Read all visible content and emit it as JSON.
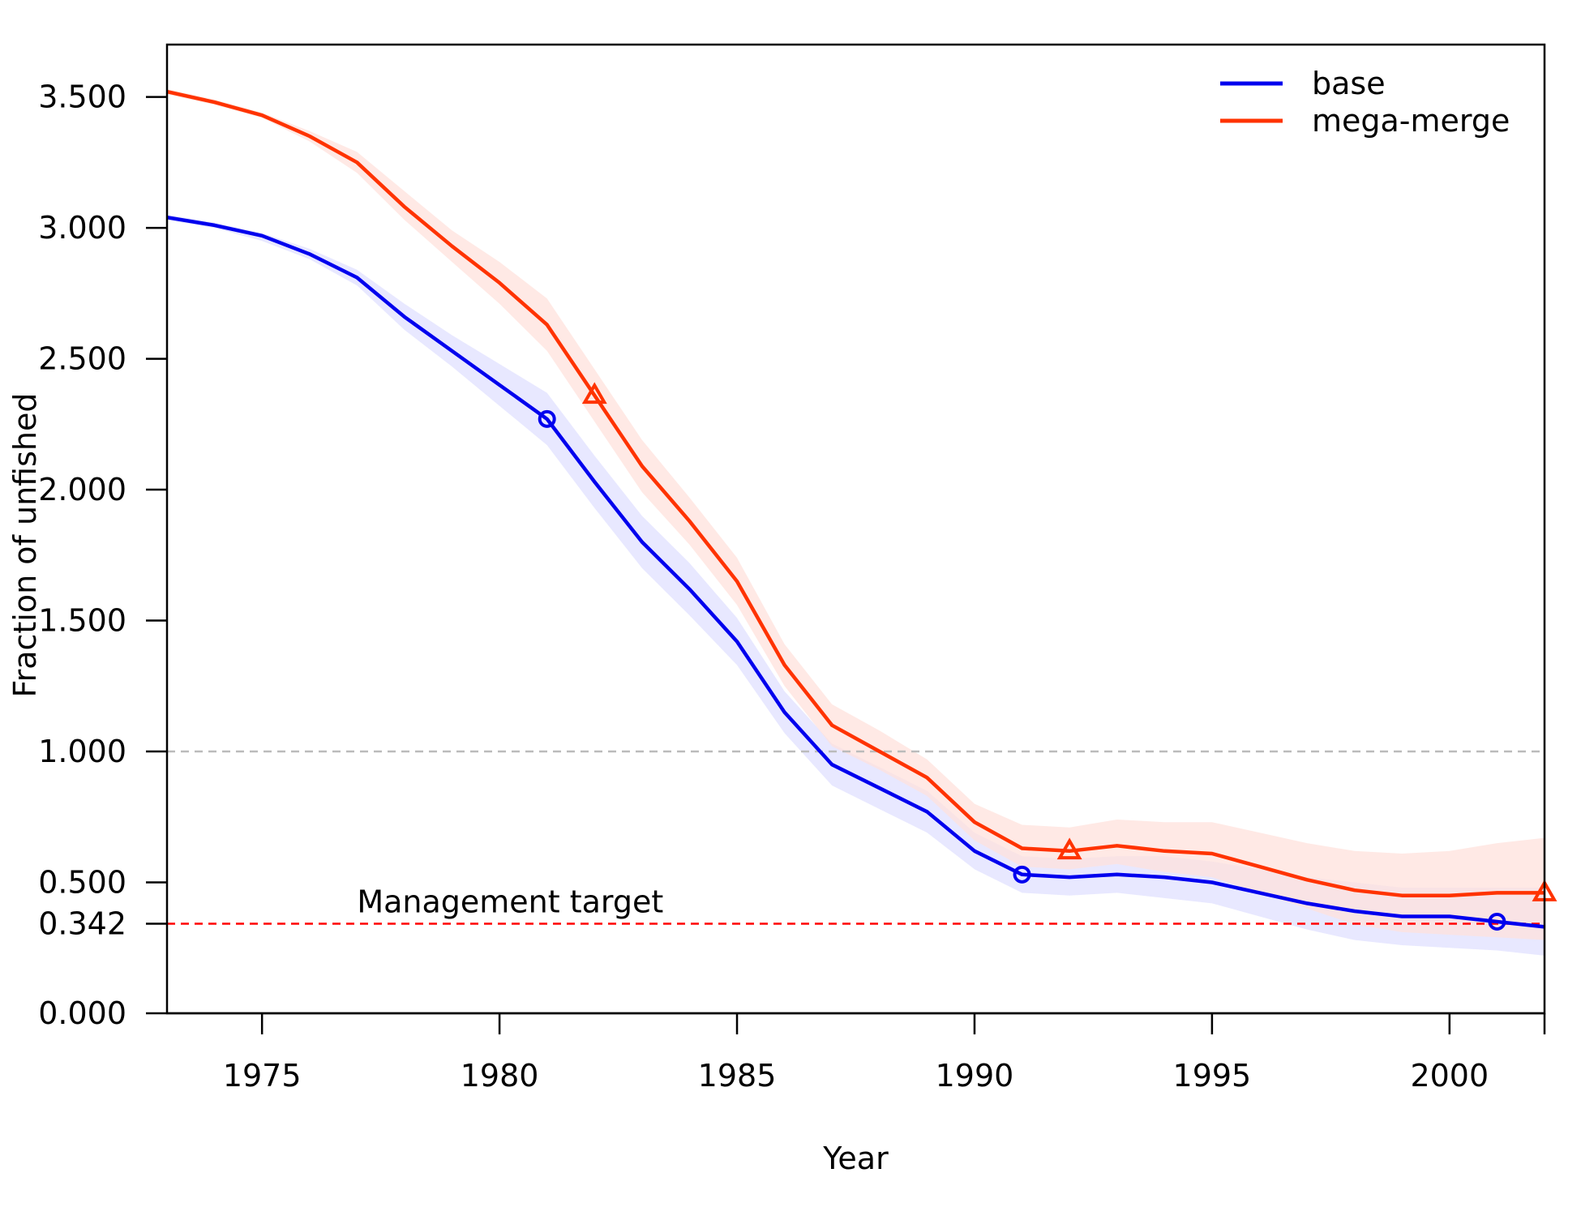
{
  "chart_data": {
    "type": "line",
    "title": "",
    "xlabel": "Year",
    "ylabel": "Fraction of unfished",
    "xlim": [
      1973,
      2002
    ],
    "ylim": [
      0,
      3.7
    ],
    "x_ticks": [
      1975,
      1980,
      1985,
      1990,
      1995,
      2000
    ],
    "x_tick_labels": [
      "1975",
      "1980",
      "1985",
      "1990",
      "1995",
      "2000"
    ],
    "y_ticks": [
      0,
      0.342,
      0.5,
      1.0,
      1.5,
      2.0,
      2.5,
      3.0,
      3.5
    ],
    "y_tick_labels": [
      "0.000",
      "0.342",
      "0.500",
      "1.000",
      "1.500",
      "2.000",
      "2.500",
      "3.000",
      "3.500"
    ],
    "grid": false,
    "legend_position": "top-right",
    "x": [
      1973,
      1974,
      1975,
      1976,
      1977,
      1978,
      1979,
      1980,
      1981,
      1982,
      1983,
      1984,
      1985,
      1986,
      1987,
      1988,
      1989,
      1990,
      1991,
      1992,
      1993,
      1994,
      1995,
      1996,
      1997,
      1998,
      1999,
      2000,
      2001,
      2002
    ],
    "series": [
      {
        "name": "base",
        "color": "#0000ee",
        "band_color": "#e0e0ff",
        "marker": "circle",
        "marker_years": [
          1981,
          1991,
          2001
        ],
        "values": [
          3.04,
          3.01,
          2.97,
          2.9,
          2.81,
          2.66,
          2.53,
          2.4,
          2.27,
          2.03,
          1.8,
          1.62,
          1.42,
          1.15,
          0.95,
          0.86,
          0.77,
          0.62,
          0.53,
          0.52,
          0.53,
          0.52,
          0.5,
          0.46,
          0.42,
          0.39,
          0.37,
          0.37,
          0.35,
          0.33
        ],
        "lower": [
          3.03,
          3.0,
          2.95,
          2.88,
          2.78,
          2.61,
          2.47,
          2.32,
          2.17,
          1.93,
          1.7,
          1.52,
          1.33,
          1.07,
          0.87,
          0.78,
          0.69,
          0.55,
          0.46,
          0.45,
          0.46,
          0.44,
          0.42,
          0.37,
          0.32,
          0.28,
          0.26,
          0.25,
          0.24,
          0.22
        ],
        "upper": [
          3.05,
          3.02,
          2.98,
          2.92,
          2.84,
          2.71,
          2.59,
          2.48,
          2.37,
          2.13,
          1.9,
          1.72,
          1.51,
          1.23,
          1.03,
          0.94,
          0.85,
          0.69,
          0.6,
          0.59,
          0.6,
          0.6,
          0.58,
          0.55,
          0.52,
          0.5,
          0.48,
          0.48,
          0.48,
          0.48
        ]
      },
      {
        "name": "mega-merge",
        "color": "#ff3300",
        "band_color": "#ffe2dc",
        "marker": "triangle",
        "marker_years": [
          1982,
          1992,
          2002
        ],
        "values": [
          3.52,
          3.48,
          3.43,
          3.35,
          3.25,
          3.08,
          2.93,
          2.79,
          2.63,
          2.36,
          2.09,
          1.88,
          1.65,
          1.33,
          1.1,
          1.0,
          0.9,
          0.73,
          0.63,
          0.62,
          0.64,
          0.62,
          0.61,
          0.56,
          0.51,
          0.47,
          0.45,
          0.45,
          0.46,
          0.46
        ],
        "lower": [
          3.51,
          3.47,
          3.42,
          3.33,
          3.21,
          3.03,
          2.87,
          2.71,
          2.53,
          2.26,
          1.99,
          1.79,
          1.56,
          1.25,
          1.02,
          0.93,
          0.83,
          0.66,
          0.56,
          0.55,
          0.57,
          0.54,
          0.52,
          0.46,
          0.4,
          0.34,
          0.31,
          0.3,
          0.29,
          0.28
        ],
        "upper": [
          3.53,
          3.49,
          3.44,
          3.37,
          3.29,
          3.14,
          2.99,
          2.87,
          2.73,
          2.46,
          2.19,
          1.97,
          1.74,
          1.41,
          1.18,
          1.08,
          0.97,
          0.8,
          0.72,
          0.71,
          0.74,
          0.73,
          0.73,
          0.69,
          0.65,
          0.62,
          0.61,
          0.62,
          0.65,
          0.67
        ]
      }
    ],
    "reference_lines": [
      {
        "y": 1.0,
        "color": "#bbbbbb",
        "style": "dashed"
      },
      {
        "y": 0.342,
        "color": "#ff0000",
        "style": "dashed",
        "label": "Management target",
        "label_x": 1977
      }
    ]
  }
}
